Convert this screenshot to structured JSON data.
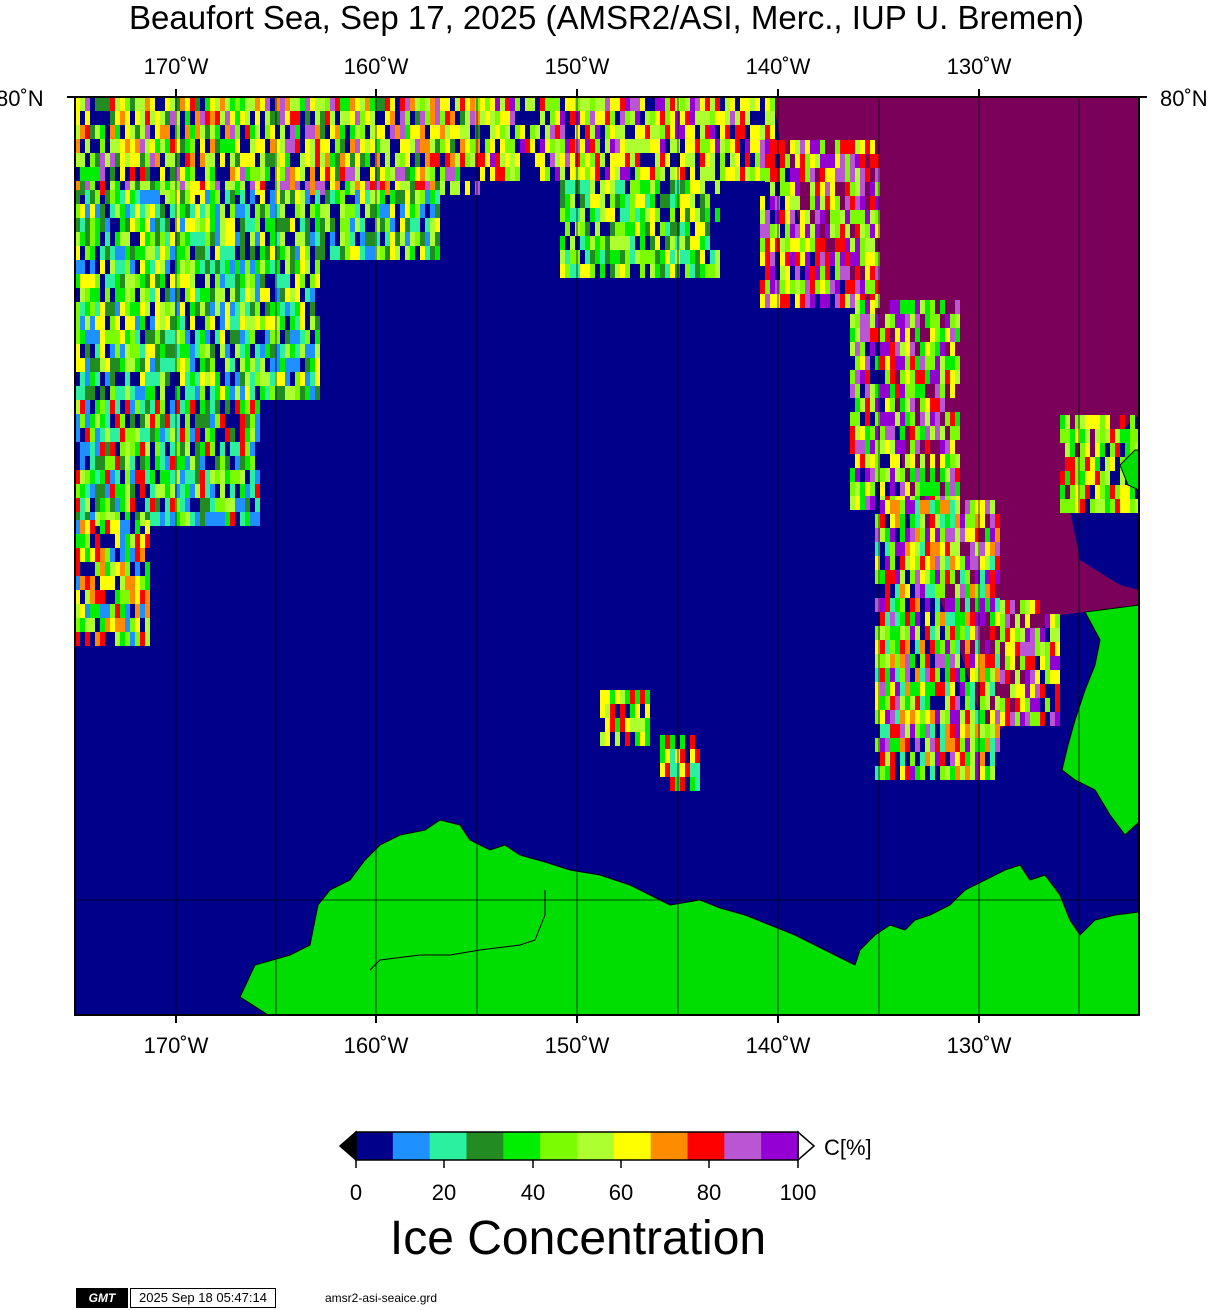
{
  "title": "Beaufort Sea, Sep 17, 2025 (AMSR2/ASI, Merc., IUP U. Bremen)",
  "map": {
    "lon_ticks": [
      "170˚W",
      "160˚W",
      "150˚W",
      "140˚W",
      "130˚W"
    ],
    "lat_tick": "80˚N",
    "colors": {
      "ocean": "#00008b",
      "land": "#00dd00",
      "no_data_ice": "#7b0059",
      "coast": "#000000"
    }
  },
  "colorbar": {
    "tick_labels": [
      "0",
      "20",
      "40",
      "60",
      "80",
      "100"
    ],
    "unit": "C[%]",
    "title": "Ice Concentration",
    "colors": [
      "#00008b",
      "#1e90ff",
      "#2af0a0",
      "#228b22",
      "#00ee00",
      "#7cfc00",
      "#adff2f",
      "#ffff00",
      "#ff8c00",
      "#ff0000",
      "#ba55d3",
      "#9400d3"
    ],
    "under_color": "#000000",
    "over_color": "#ffffff"
  },
  "footer": {
    "logo": "GMT",
    "timestamp": "2025 Sep 18 05:47:14",
    "grid_file": "amsr2-asi-seaice.grd"
  }
}
